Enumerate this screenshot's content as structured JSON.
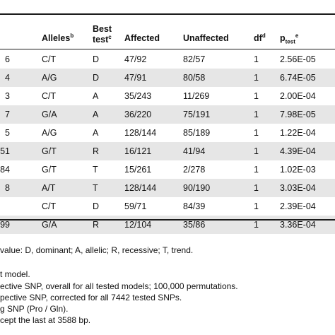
{
  "table": {
    "headers": {
      "alleles": "Alleles",
      "alleles_sup": "b",
      "best_line1": "Best",
      "best_line2": "test",
      "best_sup": "c",
      "affected": "Affected",
      "unaffected": "Unaffected",
      "df": "df",
      "df_sup": "d",
      "p_main": "p",
      "p_sub": "test",
      "p_sup": "e"
    },
    "rows": [
      {
        "snp": "6",
        "alleles": "C/T",
        "best": "D",
        "affected": "47/92",
        "unaffected": "82/57",
        "df": "1",
        "p": "2.56E-05"
      },
      {
        "snp": "4",
        "alleles": "A/G",
        "best": "D",
        "affected": "47/91",
        "unaffected": "80/58",
        "df": "1",
        "p": "6.74E-05"
      },
      {
        "snp": "3",
        "alleles": "C/T",
        "best": "A",
        "affected": "35/243",
        "unaffected": "11/269",
        "df": "1",
        "p": "2.00E-04"
      },
      {
        "snp": "7",
        "alleles": "G/A",
        "best": "A",
        "affected": "36/220",
        "unaffected": "75/191",
        "df": "1",
        "p": "7.98E-05"
      },
      {
        "snp": "5",
        "alleles": "A/G",
        "best": "A",
        "affected": "128/144",
        "unaffected": "85/189",
        "df": "1",
        "p": "1.22E-04"
      },
      {
        "snp": "51",
        "alleles": "G/T",
        "best": "R",
        "affected": "16/121",
        "unaffected": "41/94",
        "df": "1",
        "p": "4.39E-04"
      },
      {
        "snp": "84",
        "alleles": "G/T",
        "best": "T",
        "affected": "15/261",
        "unaffected": "2/278",
        "df": "1",
        "p": "1.02E-03"
      },
      {
        "snp": "8",
        "alleles": "A/T",
        "best": "T",
        "affected": "128/144",
        "unaffected": "90/190",
        "df": "1",
        "p": "3.03E-04"
      },
      {
        "snp": "",
        "alleles": "C/T",
        "best": "D",
        "affected": "59/71",
        "unaffected": "84/39",
        "df": "1",
        "p": "2.39E-04"
      },
      {
        "snp": "99",
        "alleles": "G/A",
        "best": "R",
        "affected": "12/104",
        "unaffected": "35/86",
        "df": "1",
        "p": "3.36E-04"
      }
    ]
  },
  "footnotes": [
    "value: D, dominant; A, allelic; R, recessive; T, trend.",
    "t model.",
    "ective SNP, overall for all tested models; 100,000 permutations.",
    "pective SNP, corrected for all 7442 tested SNPs.",
    "g SNP (Pro / Gln).",
    "cept the last at 3588 bp."
  ]
}
